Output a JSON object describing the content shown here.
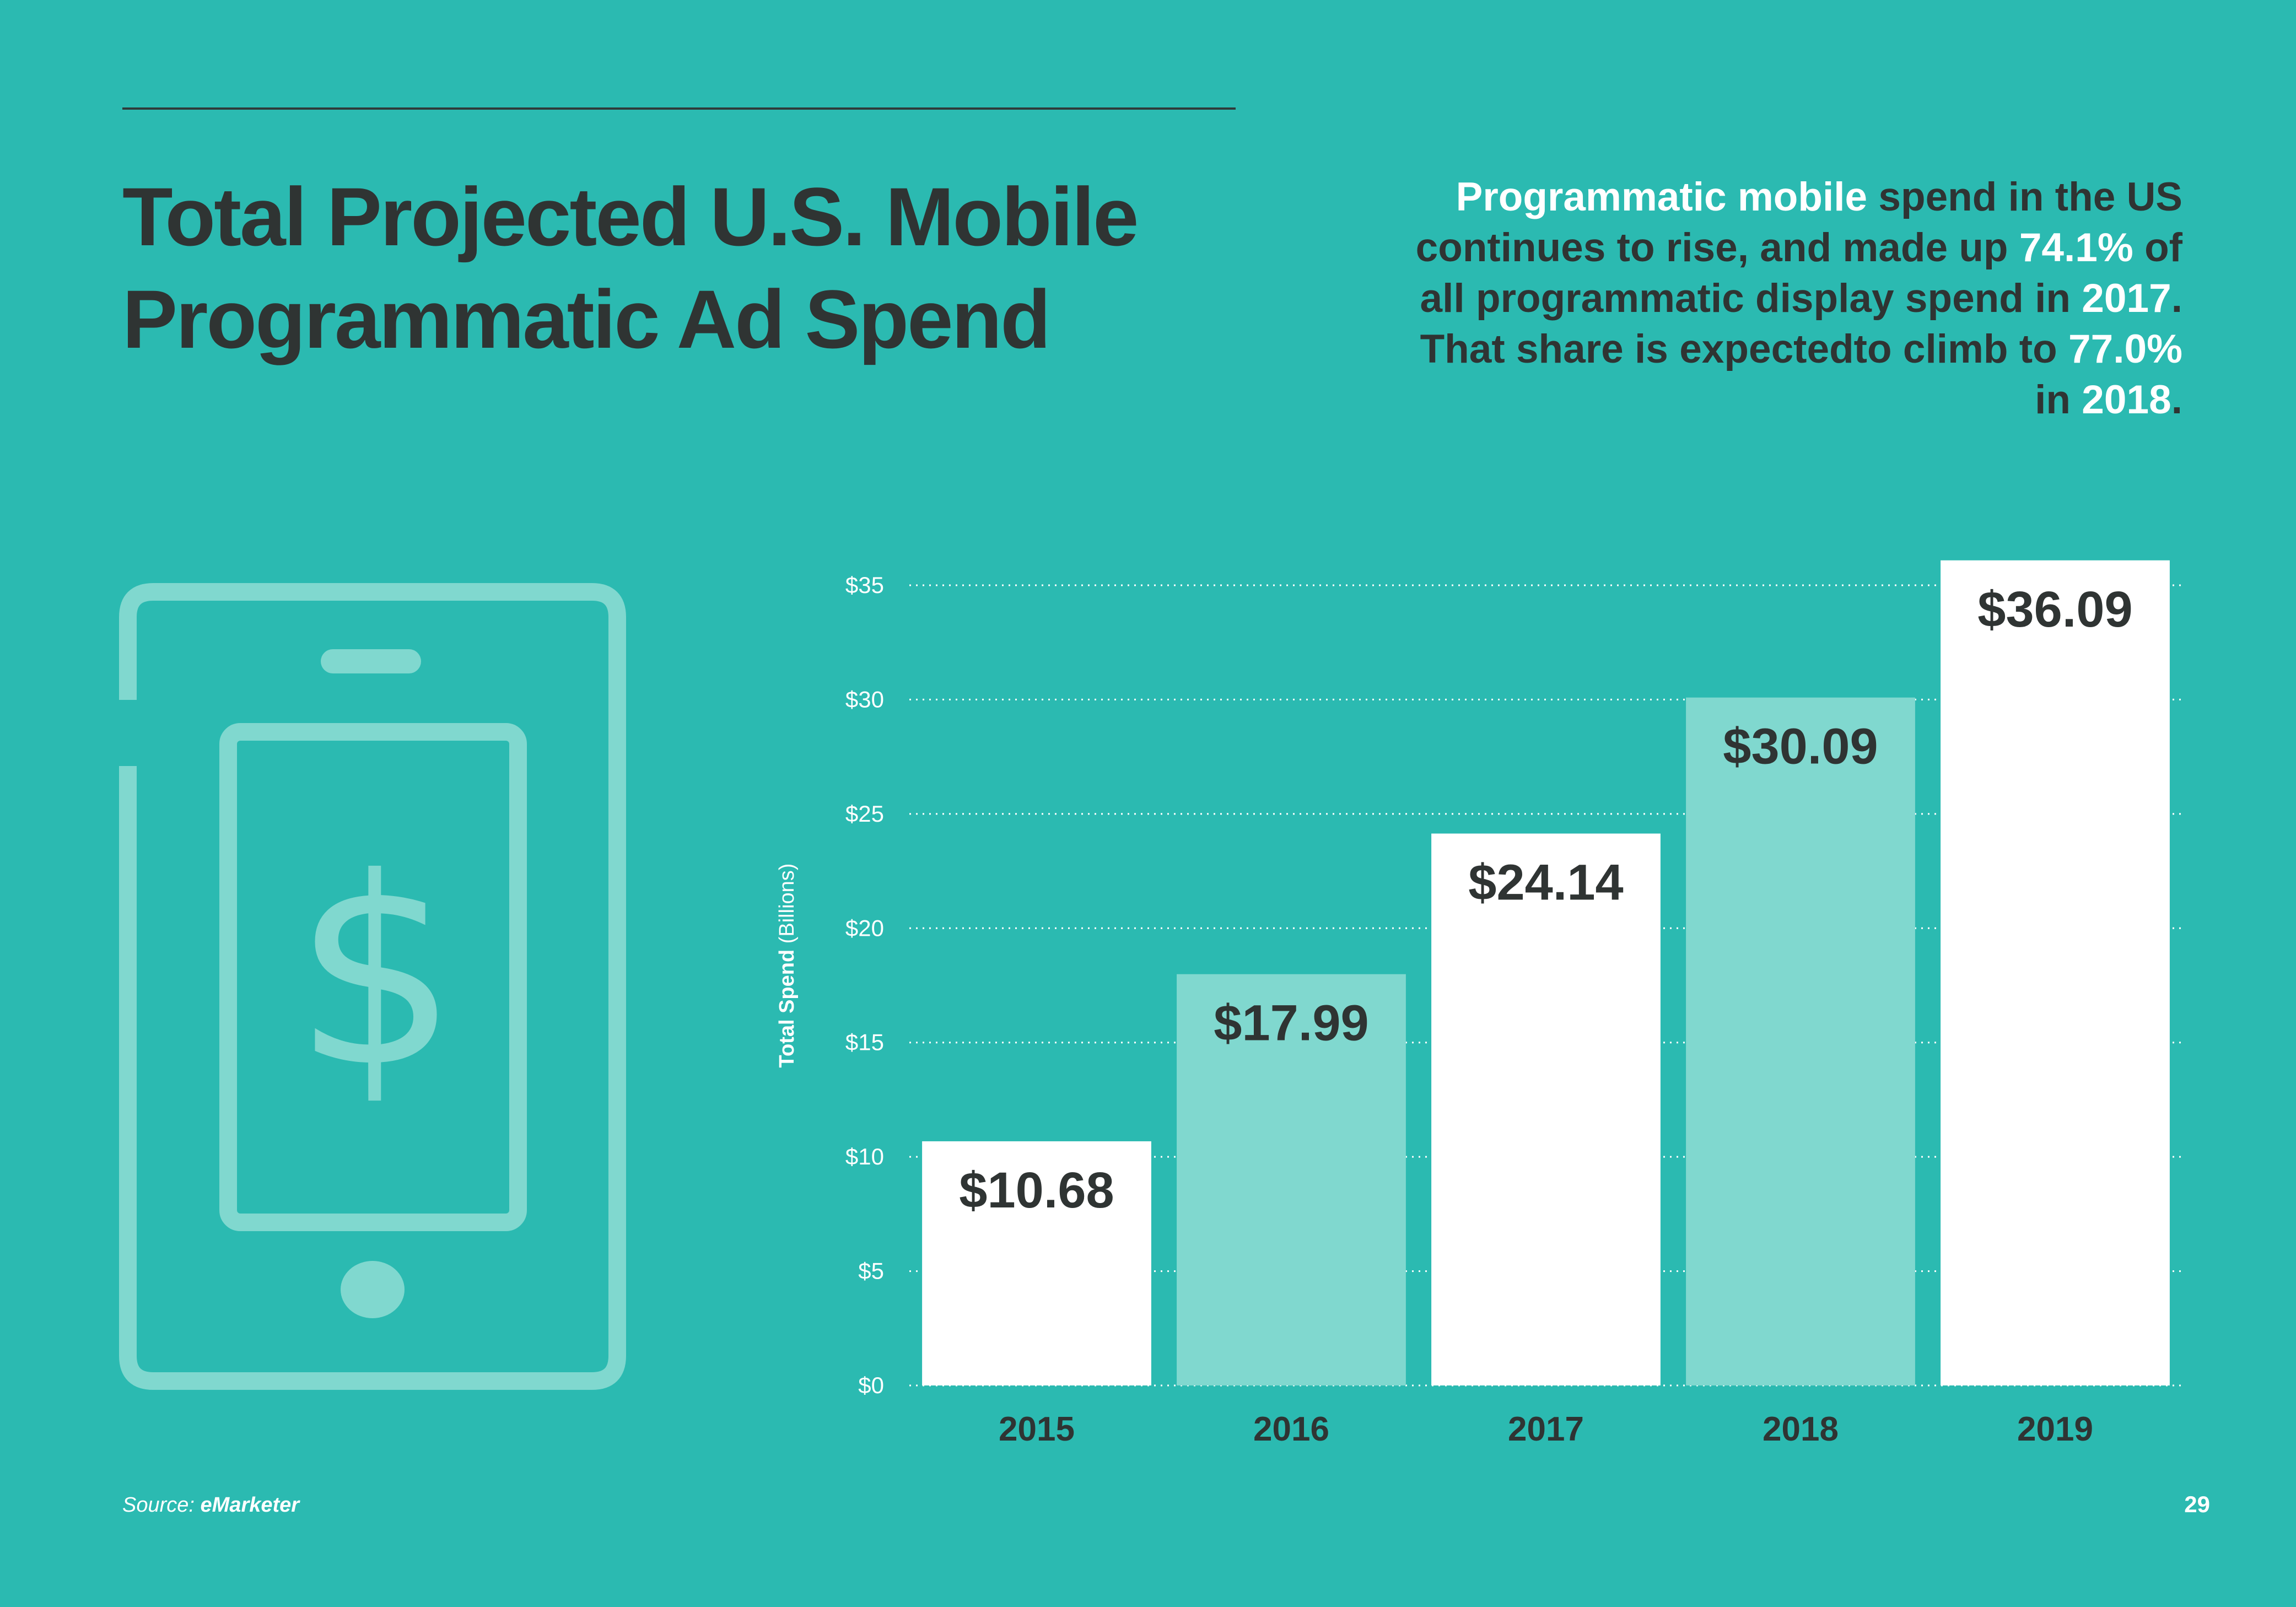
{
  "title_lines": [
    "Total Projected U.S. Mobile",
    "Programmatic Ad Spend"
  ],
  "summary": {
    "p1": "Programmatic mobile",
    "p2": " spend in the US continues to rise, and made up ",
    "p3": "74.1%",
    "p4": " of all programmatic display spend in ",
    "p5": "2017",
    "p6": ". That share is expectedto climb to ",
    "p7": "77.0%",
    "p8": " in ",
    "p9": "2018",
    "p10": "."
  },
  "source": {
    "prefix": "Source: ",
    "name": "eMarketer"
  },
  "page_number": "29",
  "icon": {
    "name": "mobile-phone-dollar-icon",
    "glyph": "$",
    "color": "#80d8cf"
  },
  "colors": {
    "background": "#2bbab1",
    "bar_white": "#ffffff",
    "bar_light": "#80d8cf",
    "text_dark": "#2f3433",
    "text_white": "#ffffff"
  },
  "chart_data": {
    "type": "bar",
    "categories": [
      "2015",
      "2016",
      "2017",
      "2018",
      "2019"
    ],
    "values": [
      10.68,
      17.99,
      24.14,
      30.09,
      36.09
    ],
    "data_labels": [
      "$10.68",
      "$17.99",
      "$24.14",
      "$30.09",
      "$36.09"
    ],
    "bar_colors": [
      "#ffffff",
      "#80d8cf",
      "#ffffff",
      "#80d8cf",
      "#ffffff"
    ],
    "ylabel_bold": "Total Spend",
    "ylabel_light": " (Billions)",
    "ylim": [
      0,
      35
    ],
    "yticks": [
      0,
      5,
      10,
      15,
      20,
      25,
      30,
      35
    ],
    "ytick_labels": [
      "$0",
      "$5",
      "$10",
      "$15",
      "$20",
      "$25",
      "$30",
      "$35"
    ],
    "grid": true
  }
}
